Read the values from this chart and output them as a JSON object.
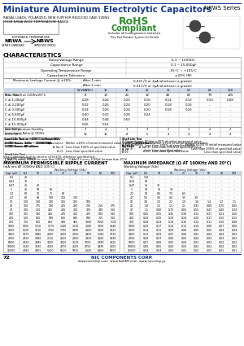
{
  "title": "Miniature Aluminum Electrolytic Capacitors",
  "series": "NRWS Series",
  "subtitle_line1": "RADIAL LEADS, POLARIZED, NEW FURTHER REDUCED CASE SIZING,",
  "subtitle_line2": "FROM NRWA WIDE TEMPERATURE RANGE",
  "rohs_line1": "RoHS",
  "rohs_line2": "Compliant",
  "rohs_line3": "Includes all homogeneous materials",
  "rohs_note": "*See Part Number System for Details",
  "ext_temp_label": "EXTENDED TEMPERATURE",
  "nrwa_label": "NRWA",
  "nrws_label": "NRWS",
  "nrwa_sub": "SERIES STANDARD",
  "nrws_sub": "IMPROVED MODEL",
  "char_title": "CHARACTERISTICS",
  "char_rows": [
    [
      "Rated Voltage Range",
      "6.3 ~ 100VDC"
    ],
    [
      "Capacitance Range",
      "0.1 ~ 15,000μF"
    ],
    [
      "Operating Temperature Range",
      "-55°C ~ +105°C"
    ],
    [
      "Capacitance Tolerance",
      "±20% (M)"
    ]
  ],
  "leakage_label": "Maximum Leakage Current @ ±20%:",
  "leakage_after1": "After 1 min.",
  "leakage_val1": "0.03C√V or 4μA whichever is greater",
  "leakage_after2": "After 5 min.",
  "leakage_val2": "0.01C√V or 3μA whichever is greater",
  "tan_label": "Max. Tan δ at 120Hz/20°C",
  "tan_headers": [
    "W.V. (VDC)",
    "6.3",
    "10",
    "16",
    "25",
    "35",
    "50",
    "63",
    "100"
  ],
  "tan_rows": [
    [
      "S.V. (Vdc)",
      "8",
      "13",
      "20",
      "32",
      "44",
      "63",
      "79",
      "125"
    ],
    [
      "C ≤ 1,000μF",
      "0.28",
      "0.24",
      "0.20",
      "0.16",
      "0.14",
      "0.12",
      "0.10",
      "0.08"
    ],
    [
      "C ≤ 2,200μF",
      "0.32",
      "0.26",
      "0.24",
      "0.20",
      "0.18",
      "0.16",
      "-",
      "-"
    ],
    [
      "C ≤ 3,300μF",
      "0.34",
      "0.26",
      "0.24",
      "0.20",
      "0.18",
      "0.16",
      "-",
      "-"
    ],
    [
      "C ≤ 6,800μF",
      "0.40",
      "0.32",
      "0.28",
      "0.24",
      "-",
      "-",
      "-",
      "-"
    ],
    [
      "C ≤ 10,000μF",
      "0.44",
      "0.44",
      "0.50",
      "-",
      "-",
      "-",
      "-",
      "-"
    ],
    [
      "C ≤ 15,000μF",
      "0.56",
      "0.52",
      "-",
      "-",
      "-",
      "-",
      "-",
      "-"
    ]
  ],
  "low_temp_label": "Low Temperature Stability\nImpedance Ratio @ 120Hz",
  "low_temp_rows": [
    [
      "2.0°C/20°C",
      "3",
      "4",
      "3",
      "3",
      "2",
      "2",
      "2",
      "2"
    ],
    [
      "2.0°C/-20°C",
      "12",
      "10",
      "8",
      "5",
      "4",
      "4",
      "4",
      "4"
    ]
  ],
  "load_life_label": "Load Life Test at +105°C & Rated W.V.\n2,000 Hours, 1kHz ~ 100V 0.5A\n1,000 Hours: All others",
  "load_life_rows": [
    [
      "Δ Capacitance",
      "Within ±20% of initial measured value"
    ],
    [
      "A Tan δ",
      "Less than 200% of specified value"
    ],
    [
      "Δ LC",
      "Less than specified value"
    ]
  ],
  "shelf_life_label": "Shelf Life Test\n+105°C, 1000 Hours\nNo Load",
  "shelf_life_rows": [
    [
      "Δ Capacitance",
      "Within ±15% of initial measured value"
    ],
    [
      "A Tan δ",
      "Less than 200% of specified value"
    ],
    [
      "Δ LC",
      "Less than specified value"
    ]
  ],
  "note1": "Note: Capacitors shall be rated to ±20±10%, otherwise specified here.",
  "note2": "*1 Add 0.6 every 1000μF for more than 1000μF   *2 Add 0.6 every 1000μF for more than 100V",
  "ripple_title": "MAXIMUM PERMISSIBLE RIPPLE CURRENT",
  "ripple_sub": "(mA rms AT 100KHz AND 105°C)",
  "ripple_headers": [
    "Cap. (μF)",
    "6.3",
    "10",
    "16",
    "25",
    "35",
    "50",
    "63",
    "100"
  ],
  "ripple_rows": [
    [
      "0.1",
      "20",
      "-",
      "-",
      "-",
      "-",
      "-",
      "-",
      "-"
    ],
    [
      "0.22",
      "30",
      "-",
      "-",
      "-",
      "-",
      "-",
      "-",
      "-"
    ],
    [
      "0.47",
      "35",
      "40",
      "-",
      "-",
      "-",
      "-",
      "-",
      "-"
    ],
    [
      "1",
      "45",
      "50",
      "55",
      "-",
      "-",
      "-",
      "-",
      "-"
    ],
    [
      "2.2",
      "60",
      "70",
      "75",
      "80",
      "-",
      "-",
      "-",
      "-"
    ],
    [
      "4.7",
      "80",
      "90",
      "100",
      "110",
      "120",
      "-",
      "-",
      "-"
    ],
    [
      "10",
      "120",
      "130",
      "140",
      "155",
      "165",
      "180",
      "-",
      "-"
    ],
    [
      "22",
      "160",
      "175",
      "190",
      "205",
      "220",
      "235",
      "250",
      "270"
    ],
    [
      "47",
      "230",
      "250",
      "265",
      "285",
      "300",
      "320",
      "340",
      "360"
    ],
    [
      "100",
      "360",
      "380",
      "400",
      "425",
      "450",
      "475",
      "500",
      "530"
    ],
    [
      "220",
      "520",
      "550",
      "580",
      "615",
      "645",
      "680",
      "715",
      "760"
    ],
    [
      "470",
      "750",
      "800",
      "850",
      "900",
      "950",
      "1000",
      "1050",
      "1110"
    ],
    [
      "1000",
      "1050",
      "1110",
      "1175",
      "1240",
      "1310",
      "1380",
      "1450",
      "1540"
    ],
    [
      "2200",
      "1520",
      "1610",
      "1700",
      "1795",
      "1895",
      "2000",
      "2100",
      "2225"
    ],
    [
      "3300",
      "1870",
      "1980",
      "2090",
      "2205",
      "2330",
      "2455",
      "2580",
      "2735"
    ],
    [
      "4700",
      "2250",
      "2380",
      "2515",
      "2655",
      "2800",
      "2950",
      "3100",
      "3290"
    ],
    [
      "6800",
      "2820",
      "2985",
      "3150",
      "3325",
      "3510",
      "3700",
      "3890",
      "4125"
    ],
    [
      "10000",
      "3620",
      "3830",
      "4045",
      "4270",
      "4505",
      "4750",
      "4995",
      "5300"
    ],
    [
      "15000",
      "4680",
      "4955",
      "5230",
      "5520",
      "5825",
      "6145",
      "6460",
      "6855"
    ]
  ],
  "impedance_title": "MAXIMUM IMPEDANCE (Ω AT 100KHz AND 20°C)",
  "impedance_sub": "Working Voltage (Vdc)",
  "impedance_headers": [
    "Cap. (μF)",
    "6.3",
    "10",
    "16",
    "25",
    "35",
    "50",
    "63",
    "100"
  ],
  "impedance_rows": [
    [
      "0.1",
      "110",
      "-",
      "-",
      "-",
      "-",
      "-",
      "-",
      "-"
    ],
    [
      "0.22",
      "55",
      "-",
      "-",
      "-",
      "-",
      "-",
      "-",
      "-"
    ],
    [
      "0.47",
      "35",
      "30",
      "-",
      "-",
      "-",
      "-",
      "-",
      "-"
    ],
    [
      "1",
      "18",
      "16",
      "14",
      "-",
      "-",
      "-",
      "-",
      "-"
    ],
    [
      "2.2",
      "10",
      "8.5",
      "7.5",
      "6.5",
      "-",
      "-",
      "-",
      "-"
    ],
    [
      "4.7",
      "5.5",
      "4.5",
      "4.0",
      "3.5",
      "3.0",
      "-",
      "-",
      "-"
    ],
    [
      "10",
      "3.0",
      "2.5",
      "2.2",
      "1.9",
      "1.6",
      "1.4",
      "1.2",
      "1.1"
    ],
    [
      "22",
      "1.8",
      "1.5",
      "1.3",
      "1.1",
      "0.95",
      "0.80",
      "0.70",
      "0.60"
    ],
    [
      "47",
      "1.1",
      "0.90",
      "0.75",
      "0.65",
      "0.55",
      "0.47",
      "0.40",
      "0.34"
    ],
    [
      "100",
      "0.65",
      "0.55",
      "0.45",
      "0.38",
      "0.32",
      "0.27",
      "0.23",
      "0.20"
    ],
    [
      "220",
      "0.42",
      "0.35",
      "0.29",
      "0.24",
      "0.20",
      "0.17",
      "0.15",
      "0.12"
    ],
    [
      "470",
      "0.28",
      "0.24",
      "0.19",
      "0.16",
      "0.14",
      "0.11",
      "0.10",
      "0.08"
    ],
    [
      "1000",
      "0.20",
      "0.17",
      "0.14",
      "0.11",
      "0.10",
      "0.08",
      "0.07",
      "0.06"
    ],
    [
      "2200",
      "0.14",
      "0.11",
      "0.09",
      "0.08",
      "0.06",
      "0.05",
      "0.04",
      "0.04"
    ],
    [
      "3300",
      "0.11",
      "0.09",
      "0.07",
      "0.06",
      "0.05",
      "0.04",
      "0.04",
      "0.03"
    ],
    [
      "4700",
      "0.09",
      "0.07",
      "0.06",
      "0.05",
      "0.04",
      "0.03",
      "0.03",
      "0.02"
    ],
    [
      "6800",
      "0.07",
      "0.06",
      "0.05",
      "0.04",
      "0.03",
      "0.03",
      "0.02",
      "0.02"
    ],
    [
      "10000",
      "0.06",
      "0.05",
      "0.04",
      "0.03",
      "0.02",
      "0.02",
      "0.02",
      "0.02"
    ],
    [
      "15000",
      "0.04",
      "0.04",
      "0.03",
      "0.02",
      "0.02",
      "0.02",
      "0.01",
      "0.01"
    ]
  ],
  "footer_company": "NIC COMPONENTS CORP.",
  "footer_web1": "www.niccomp.com",
  "footer_web2": "www.bwSMT.com",
  "footer_web3": "www.niccomp.jp",
  "footer_page": "72",
  "header_color": "#1a3a8f",
  "table_header_bg": "#d0daea",
  "rohs_green": "#2e8b2e",
  "border_color": "#888888",
  "bg_color": "#ffffff",
  "title_fontsize": 7.5,
  "series_fontsize": 5.0,
  "body_fontsize": 3.2,
  "small_fontsize": 2.8,
  "section_fontsize": 4.5,
  "rohs1_fontsize": 9.0,
  "rohs2_fontsize": 7.0
}
